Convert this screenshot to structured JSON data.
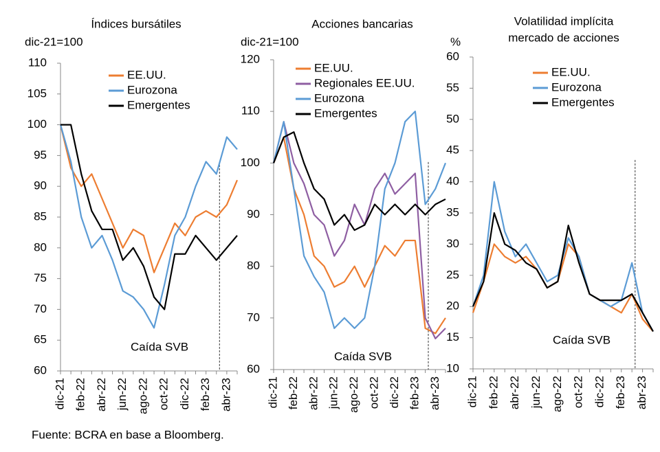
{
  "chart_data": [
    {
      "type": "line",
      "title": [
        "Índices bursátiles"
      ],
      "y_label": "dic-21=100",
      "categories": [
        "dic-21",
        null,
        "feb-22",
        null,
        "abr-22",
        null,
        "jun-22",
        null,
        "ago-22",
        null,
        "oct-22",
        null,
        "dic-22",
        null,
        "feb-23",
        null,
        "abr-23",
        null
      ],
      "series": [
        {
          "name": "EE.UU.",
          "color": "#ed7d31",
          "values": [
            100,
            93,
            90,
            92,
            88,
            84,
            80,
            83,
            82,
            76,
            80,
            84,
            82,
            85,
            86,
            85,
            87,
            91
          ]
        },
        {
          "name": "Eurozona",
          "color": "#5b9bd5",
          "values": [
            100,
            94,
            85,
            80,
            82,
            78,
            73,
            72,
            70,
            67,
            74,
            82,
            85,
            90,
            94,
            92,
            98,
            96
          ]
        },
        {
          "name": "Emergentes",
          "color": "#000000",
          "values": [
            100,
            100,
            92,
            86,
            83,
            83,
            78,
            80,
            77,
            72,
            70,
            79,
            79,
            82,
            80,
            78,
            80,
            82
          ]
        }
      ],
      "ylim": [
        60,
        110
      ],
      "yticks": [
        60,
        65,
        70,
        75,
        80,
        85,
        90,
        95,
        100,
        105,
        110
      ],
      "annotation": "Caída SVB"
    },
    {
      "type": "line",
      "title": [
        "Acciones bancarias"
      ],
      "y_label": "dic-21=100",
      "categories": [
        "dic-21",
        null,
        "feb-22",
        null,
        "abr-22",
        null,
        "jun-22",
        null,
        "ago-22",
        null,
        "oct-22",
        null,
        "dic-22",
        null,
        "feb-23",
        null,
        "abr-23",
        null
      ],
      "series": [
        {
          "name": "EE.UU.",
          "color": "#ed7d31",
          "values": [
            100,
            105,
            95,
            90,
            82,
            80,
            76,
            77,
            80,
            76,
            80,
            84,
            82,
            85,
            85,
            68,
            67,
            70
          ]
        },
        {
          "name": "Regionales EE.UU.",
          "color": "#8e5ea2",
          "values": [
            100,
            108,
            100,
            96,
            90,
            88,
            82,
            85,
            92,
            88,
            95,
            98,
            94,
            96,
            98,
            70,
            66,
            68
          ]
        },
        {
          "name": "Eurozona",
          "color": "#5b9bd5",
          "values": [
            100,
            108,
            95,
            82,
            78,
            75,
            68,
            70,
            68,
            70,
            80,
            95,
            100,
            108,
            110,
            92,
            95,
            100
          ]
        },
        {
          "name": "Emergentes",
          "color": "#000000",
          "values": [
            100,
            105,
            106,
            100,
            95,
            93,
            88,
            90,
            87,
            88,
            92,
            90,
            92,
            90,
            92,
            90,
            92,
            93
          ]
        }
      ],
      "ylim": [
        60,
        120
      ],
      "yticks": [
        60,
        70,
        80,
        90,
        100,
        110,
        120
      ],
      "annotation": "Caída SVB"
    },
    {
      "type": "line",
      "title": [
        "Volatilidad implícita",
        "mercado de acciones"
      ],
      "y_label": "%",
      "categories": [
        "dic-21",
        null,
        "feb-22",
        null,
        "abr-22",
        null,
        "jun-22",
        null,
        "ago-22",
        null,
        "oct-22",
        null,
        "dic-22",
        null,
        "feb-23",
        null,
        "abr-23",
        null
      ],
      "series": [
        {
          "name": "EE.UU.",
          "color": "#ed7d31",
          "values": [
            19,
            24,
            30,
            28,
            27,
            28,
            26,
            23,
            24,
            30,
            28,
            22,
            21,
            20,
            19,
            22,
            18,
            16
          ]
        },
        {
          "name": "Eurozona",
          "color": "#5b9bd5",
          "values": [
            20,
            25,
            40,
            32,
            28,
            30,
            27,
            24,
            25,
            31,
            28,
            22,
            21,
            20,
            21,
            27,
            19,
            16
          ]
        },
        {
          "name": "Emergentes",
          "color": "#000000",
          "values": [
            20,
            24,
            35,
            30,
            29,
            27,
            26,
            23,
            24,
            33,
            27,
            22,
            21,
            21,
            21,
            22,
            19,
            16
          ]
        }
      ],
      "ylim": [
        10,
        60
      ],
      "yticks": [
        10,
        15,
        20,
        25,
        30,
        35,
        40,
        45,
        50,
        55,
        60
      ],
      "annotation": "Caída SVB"
    }
  ],
  "source": "Fuente: BCRA en base a Bloomberg."
}
